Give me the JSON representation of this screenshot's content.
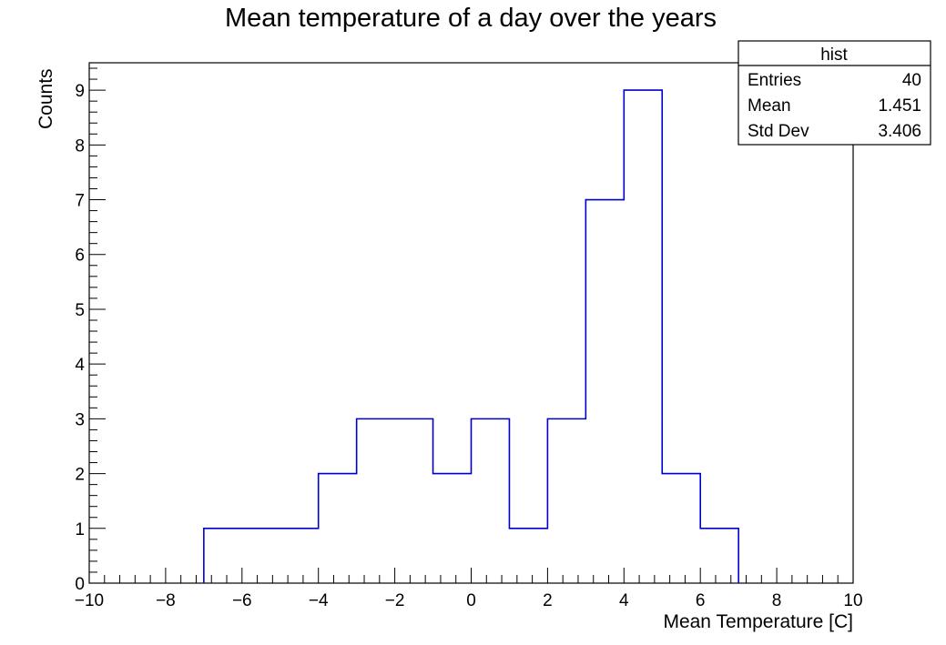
{
  "chart_data": {
    "type": "bar",
    "title": "Mean temperature of a day over the years",
    "xlabel": "Mean Temperature [C]",
    "ylabel": "Counts",
    "xlim": [
      -10,
      10
    ],
    "ylim": [
      0,
      9.5
    ],
    "x_ticks": [
      -10,
      -8,
      -6,
      -4,
      -2,
      0,
      2,
      4,
      6,
      8,
      10
    ],
    "y_ticks": [
      0,
      1,
      2,
      3,
      4,
      5,
      6,
      7,
      8,
      9
    ],
    "x_tick_labels": [
      "−10",
      "−8",
      "−6",
      "−4",
      "−2",
      "0",
      "2",
      "4",
      "6",
      "8",
      "10"
    ],
    "y_tick_labels": [
      "0",
      "1",
      "2",
      "3",
      "4",
      "5",
      "6",
      "7",
      "8",
      "9"
    ],
    "bin_edges": [
      -10,
      -9,
      -8,
      -7,
      -6,
      -5,
      -4,
      -3,
      -2,
      -1,
      0,
      1,
      2,
      3,
      4,
      5,
      6,
      7,
      8,
      9,
      10
    ],
    "counts": [
      0,
      0,
      0,
      1,
      1,
      1,
      2,
      3,
      3,
      2,
      3,
      1,
      3,
      7,
      9,
      2,
      1,
      0,
      0,
      0
    ],
    "line_color": "#0000cc",
    "grid": false,
    "stats_box": {
      "title": "hist",
      "position": "top-right",
      "rows": [
        {
          "label": "Entries",
          "value": "40"
        },
        {
          "label": "Mean",
          "value": "1.451"
        },
        {
          "label": "Std Dev",
          "value": "3.406"
        }
      ]
    }
  }
}
